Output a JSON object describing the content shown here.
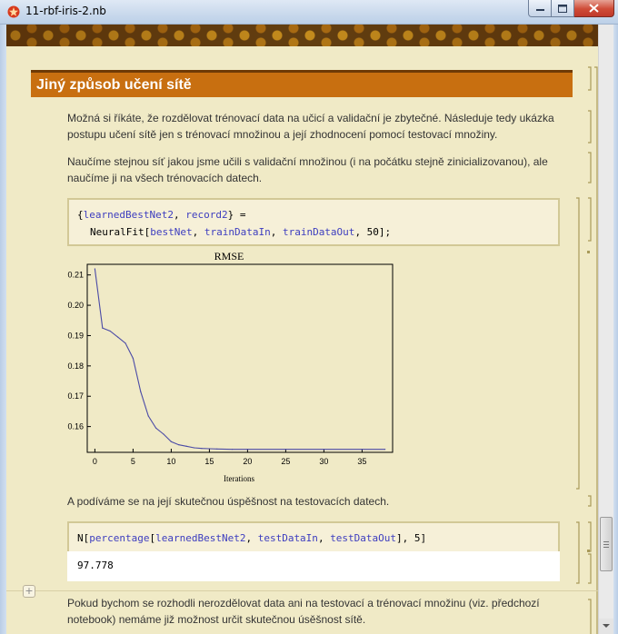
{
  "window": {
    "title": "11-rbf-iris-2.nb"
  },
  "notebook": {
    "section_title": "Jiný způsob učení sítě",
    "para1_line1": "Možná si říkáte, že rozdělovat trénovací data na učicí a validační je zbytečné. Následuje tedy ukázka",
    "para1_line2": "postupu učení sítě jen s trénovací množinou a  její zhodnocení pomocí testovací množiny.",
    "para2_line1": "Naučíme stejnou síť jakou jsme učili s validační množinou (i na počátku stejně zinicializovanou), ale",
    "para2_line2": "naučíme ji na všech trénovacích datech.",
    "code1": {
      "open_brace": "{",
      "var1": "learnedBestNet2",
      "comma1": ", ",
      "var2": "record2",
      "close": "} =",
      "func": "NeuralFit[",
      "arg1": "bestNet",
      "comma2": ", ",
      "arg2": "trainDataIn",
      "comma3": ", ",
      "arg3": "trainDataOut",
      "tail": ", 50];"
    },
    "para3": "A podíváme se na její skutečnou úspěšnost na testovacích datech.",
    "code2": {
      "func": "N[",
      "fn2": "percentage",
      "bracket": "[",
      "arg1": "learnedBestNet2",
      "comma1": ", ",
      "arg2": "testDataIn",
      "comma2": ", ",
      "arg3": "testDataOut",
      "tail": "], 5]"
    },
    "output_value": "97.778",
    "para4_line1": "Pokud bychom se rozhodli nerozdělovat data ani na testovací a trénovací množinu (viz. předchozí",
    "para4_line2": "notebook) nemáme již možnost určit skutečnou úsěšnost sítě."
  },
  "chart_data": {
    "type": "line",
    "title": "RMSE",
    "xlabel": "Iterations",
    "ylabel": "",
    "xlim": [
      -1,
      39
    ],
    "ylim": [
      0.1515,
      0.2135
    ],
    "xticks": [
      0,
      5,
      10,
      15,
      20,
      25,
      30,
      35
    ],
    "yticks": [
      0.16,
      0.17,
      0.18,
      0.19,
      0.2,
      0.21
    ],
    "ytick_labels": [
      "0.16",
      "0.17",
      "0.18",
      "0.19",
      "0.20",
      "0.21"
    ],
    "grid": false,
    "line_color": "#4b4ba6",
    "x": [
      0,
      1,
      2,
      3,
      4,
      5,
      6,
      7,
      8,
      9,
      10,
      11,
      12,
      13,
      14,
      15,
      16,
      18,
      20,
      25,
      30,
      35,
      38
    ],
    "y": [
      0.212,
      0.1925,
      0.1915,
      0.1895,
      0.1875,
      0.1825,
      0.1715,
      0.1635,
      0.1595,
      0.1575,
      0.155,
      0.154,
      0.1535,
      0.153,
      0.1528,
      0.1527,
      0.1526,
      0.1525,
      0.1525,
      0.1525,
      0.1525,
      0.1525,
      0.1525
    ]
  }
}
